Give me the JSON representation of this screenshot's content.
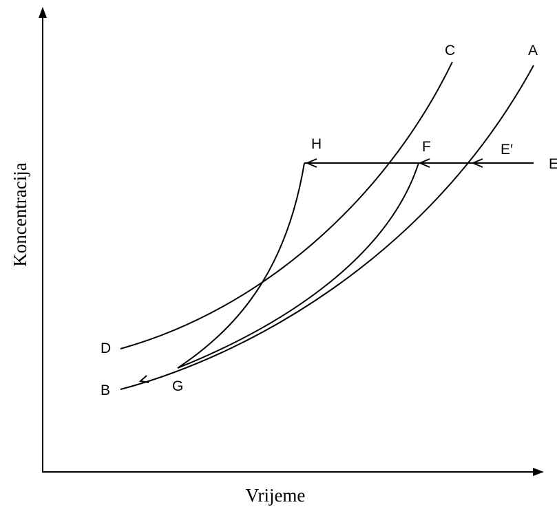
{
  "axes": {
    "x_label": "Vrijeme",
    "y_label": "Koncentracija"
  },
  "nodes": [
    {
      "label": "A"
    },
    {
      "label": "B"
    },
    {
      "label": "C"
    },
    {
      "label": "D"
    },
    {
      "label": "E"
    },
    {
      "label": "E′"
    },
    {
      "label": "F"
    },
    {
      "label": "G"
    },
    {
      "label": "H"
    }
  ]
}
